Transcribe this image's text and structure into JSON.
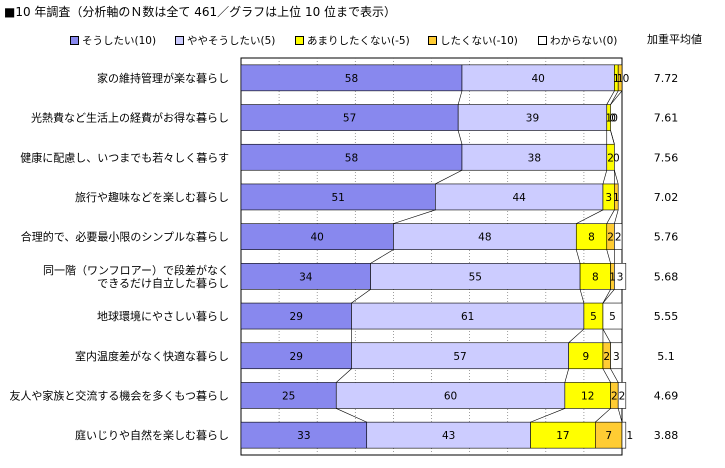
{
  "title": "■10 年調査（分析軸のＮ数は全て 461／グラフは上位 10 位まで表示）",
  "avg_header": "加重平均値",
  "chart_data": {
    "type": "bar",
    "orientation": "horizontal",
    "stacked": true,
    "title": "■10 年調査（分析軸のＮ数は全て 461／グラフは上位 10 位まで表示）",
    "xlim": [
      0,
      100
    ],
    "legend_placement": "top",
    "categories": [
      "家の維持管理が楽な暮らし",
      "光熱費など生活上の経費がお得な暮らし",
      "健康に配慮し、いつまでも若々しく暮らす",
      "旅行や趣味などを楽しむ暮らし",
      "合理的で、必要最小限のシンプルな暮らし",
      "同一階（ワンフロアー）で段差がなく\nできるだけ自立した暮らし",
      "地球環境にやさしい暮らし",
      "室内温度差がなく快適な暮らし",
      "友人や家族と交流する機会を多くもつ暮らし",
      "庭いじりや自然を楽しむ暮らし"
    ],
    "series": [
      {
        "name": "そうしたい(10)",
        "color": "#8888ee",
        "values": [
          58,
          57,
          58,
          51,
          40,
          34,
          29,
          29,
          25,
          33
        ]
      },
      {
        "name": "ややそうしたい(5)",
        "color": "#ccccff",
        "values": [
          40,
          39,
          38,
          44,
          48,
          55,
          61,
          57,
          60,
          43
        ]
      },
      {
        "name": "あまりしたくない(-5)",
        "color": "#ffff00",
        "values": [
          1,
          1,
          2,
          3,
          8,
          8,
          5,
          9,
          12,
          17
        ]
      },
      {
        "name": "したくない(-10)",
        "color": "#ffcc33",
        "values": [
          1,
          0,
          0,
          1,
          2,
          1,
          0,
          2,
          2,
          7
        ]
      },
      {
        "name": "わからない(0)",
        "color": "#ffffff",
        "values": [
          0,
          0,
          0,
          0,
          2,
          3,
          5,
          3,
          2,
          1
        ]
      }
    ],
    "labels": [
      [
        "58",
        "40",
        "1",
        "1",
        "0"
      ],
      [
        "57",
        "39",
        "1",
        "0",
        "0"
      ],
      [
        "58",
        "38",
        "2",
        "0",
        ""
      ],
      [
        "51",
        "44",
        "3",
        "1",
        ""
      ],
      [
        "40",
        "48",
        "8",
        "2",
        "2"
      ],
      [
        "34",
        "55",
        "8",
        "1",
        "3"
      ],
      [
        "29",
        "61",
        "5",
        "",
        "5"
      ],
      [
        "29",
        "57",
        "9",
        "2",
        "3"
      ],
      [
        "25",
        "60",
        "12",
        "2",
        "2"
      ],
      [
        "33",
        "43",
        "17",
        "7",
        "1"
      ]
    ],
    "weighted_average": [
      "7.72",
      "7.61",
      "7.56",
      "7.02",
      "5.76",
      "5.68",
      "5.55",
      "5.1",
      "4.69",
      "3.88"
    ],
    "gridlines": true
  }
}
